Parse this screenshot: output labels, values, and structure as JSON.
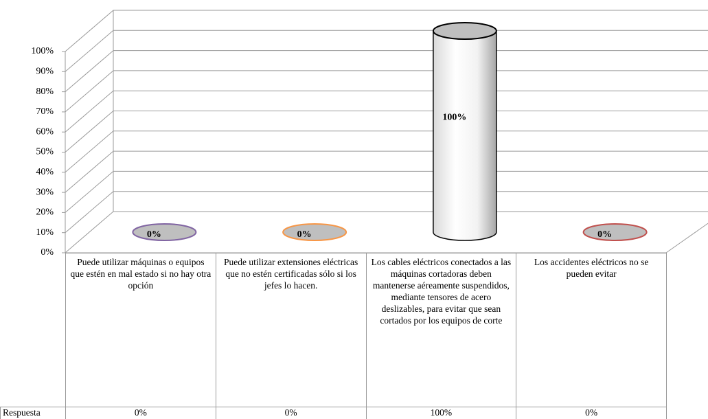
{
  "chart_data": {
    "type": "cylinder",
    "categories": [
      "Puede utilizar máquinas o equipos que estén en mal estado si no hay otra opción",
      "Puede utilizar extensiones eléctricas que no estén certificadas sólo si los jefes lo hacen.",
      "Los cables eléctricos conectados a las máquinas cortadoras deben mantenerse aéreamente suspendidos, mediante tensores de acero deslizables, para evitar que sean cortados por los equipos de corte",
      "Los accidentes eléctricos no se pueden evitar"
    ],
    "series": [
      {
        "name": "Respuesta",
        "values": [
          0,
          0,
          100,
          0
        ],
        "value_labels": [
          "0%",
          "0%",
          "100%",
          "0%"
        ],
        "colors": [
          "#8064a2",
          "#f79646",
          "#000000",
          "#c0504d"
        ]
      }
    ],
    "ylim": [
      0,
      100
    ],
    "yticks": [
      {
        "value": 0,
        "label": "0%"
      },
      {
        "value": 10,
        "label": "10%"
      },
      {
        "value": 20,
        "label": "20%"
      },
      {
        "value": 30,
        "label": "30%"
      },
      {
        "value": 40,
        "label": "40%"
      },
      {
        "value": 50,
        "label": "50%"
      },
      {
        "value": 60,
        "label": "60%"
      },
      {
        "value": 70,
        "label": "70%"
      },
      {
        "value": 80,
        "label": "80%"
      },
      {
        "value": 90,
        "label": "90%"
      },
      {
        "value": 100,
        "label": "100%"
      }
    ],
    "grid": true,
    "data_table": true
  }
}
